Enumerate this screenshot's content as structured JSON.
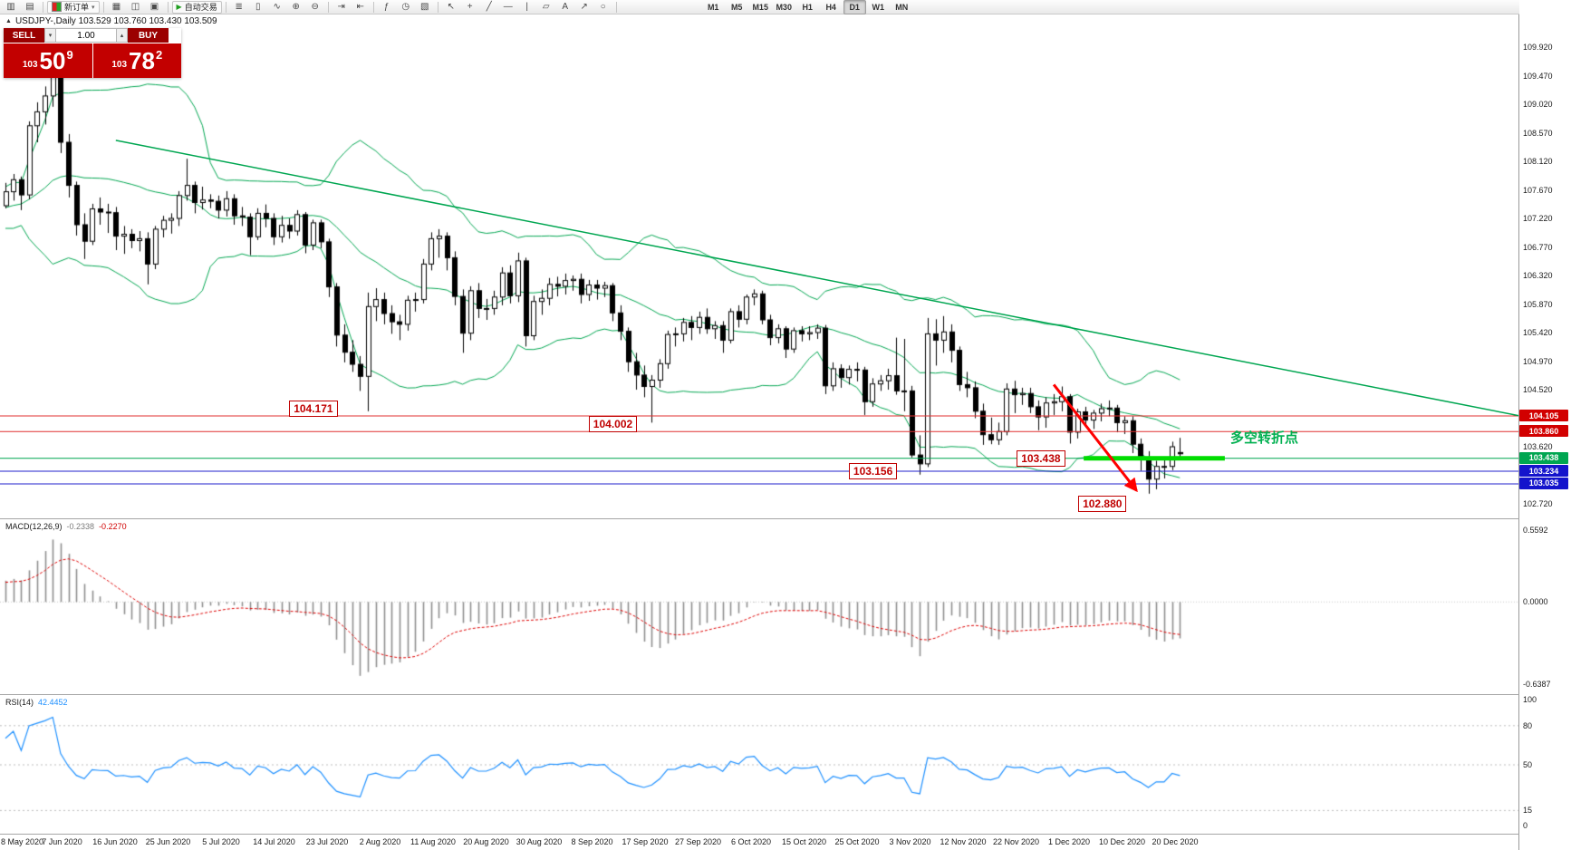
{
  "toolbar": {
    "new_order_label": "新订单",
    "autotrade_label": "自动交易",
    "timeframes": [
      "M1",
      "M5",
      "M15",
      "M30",
      "H1",
      "H4",
      "D1",
      "W1",
      "MN"
    ],
    "active_timeframe": "D1"
  },
  "icons": {
    "caret_down": "▾",
    "caret_up": "▴",
    "collapse": "▲",
    "chart_window": "▥",
    "profiles": "▤",
    "market_watch": "▦",
    "navigator": "◫",
    "terminal": "▣",
    "autoplay": "▶",
    "bars": "≣",
    "candles": "▯",
    "linechart": "∿",
    "zoom_in": "⊕",
    "zoom_out": "⊖",
    "autoscroll": "⇥",
    "shift": "⇤",
    "indicators": "ƒ",
    "periods": "◷",
    "templates": "▧",
    "cursor": "↖",
    "crosshair": "+",
    "trendline": "╱",
    "hline": "―",
    "vline": "|",
    "channel": "▱",
    "text": "A",
    "arrows": "↗",
    "shapes": "○",
    "overflow_left": "«",
    "overflow_right": "»"
  },
  "chart": {
    "title": "USDJPY-,Daily 103.529 103.760 103.430 103.509",
    "symbol": "USDJPY-",
    "period": "Daily",
    "quote": {
      "open": "103.529",
      "high": "103.760",
      "low": "103.430",
      "close": "103.509"
    }
  },
  "one_click": {
    "sell_label": "SELL",
    "buy_label": "BUY",
    "volume": "1.00",
    "sell_price": {
      "small": "103",
      "big": "50",
      "sup": "9"
    },
    "buy_price": {
      "small": "103",
      "big": "78",
      "sup": "2"
    }
  },
  "indicators": {
    "macd_label": "MACD(12,26,9)",
    "macd_main": "-0.2338",
    "macd_signal": "-0.2270",
    "rsi_label": "RSI(14)",
    "rsi_value": "42.4452"
  },
  "axis": {
    "price_ticks": [
      "109.920",
      "109.470",
      "109.020",
      "108.570",
      "108.120",
      "107.670",
      "107.220",
      "106.770",
      "106.320",
      "105.870",
      "105.420",
      "104.970",
      "104.520",
      "103.620",
      "102.720"
    ],
    "macd_ticks": [
      "0.5592",
      "0.0000",
      "-0.6387"
    ],
    "rsi_ticks": [
      "100",
      "80",
      "50",
      "15",
      "0"
    ],
    "dates": [
      "8 May 2020",
      "7 Jun 2020",
      "16 Jun 2020",
      "25 Jun 2020",
      "5 Jul 2020",
      "14 Jul 2020",
      "23 Jul 2020",
      "2 Aug 2020",
      "11 Aug 2020",
      "20 Aug 2020",
      "30 Aug 2020",
      "8 Sep 2020",
      "17 Sep 2020",
      "27 Sep 2020",
      "6 Oct 2020",
      "15 Oct 2020",
      "25 Oct 2020",
      "3 Nov 2020",
      "12 Nov 2020",
      "22 Nov 2020",
      "1 Dec 2020",
      "10 Dec 2020",
      "20 Dec 2020"
    ]
  },
  "chart_data": {
    "type": "candlestick",
    "symbol": "USDJPY",
    "timeframe": "Daily",
    "ylim": [
      102.72,
      109.92
    ],
    "grid": false,
    "candles": [
      [
        107.42,
        107.78,
        107.38,
        107.64
      ],
      [
        107.64,
        107.92,
        107.5,
        107.83
      ],
      [
        107.83,
        107.88,
        107.35,
        107.59
      ],
      [
        107.59,
        108.75,
        107.52,
        108.68
      ],
      [
        108.68,
        109.05,
        108.42,
        108.9
      ],
      [
        108.9,
        109.3,
        108.7,
        109.15
      ],
      [
        109.15,
        109.85,
        108.98,
        109.59
      ],
      [
        109.59,
        109.7,
        108.25,
        108.42
      ],
      [
        108.42,
        108.55,
        107.55,
        107.74
      ],
      [
        107.74,
        107.8,
        106.95,
        107.12
      ],
      [
        107.12,
        107.3,
        106.58,
        106.86
      ],
      [
        106.86,
        107.45,
        106.8,
        107.37
      ],
      [
        107.37,
        107.55,
        107.12,
        107.32
      ],
      [
        107.32,
        107.45,
        106.99,
        107.31
      ],
      [
        107.31,
        107.4,
        106.72,
        106.94
      ],
      [
        106.94,
        107.1,
        106.66,
        106.97
      ],
      [
        106.97,
        107.05,
        106.75,
        106.87
      ],
      [
        106.87,
        107.02,
        106.7,
        106.9
      ],
      [
        106.9,
        107.0,
        106.18,
        106.5
      ],
      [
        106.5,
        107.1,
        106.42,
        107.05
      ],
      [
        107.05,
        107.26,
        106.92,
        107.19
      ],
      [
        107.19,
        107.3,
        106.98,
        107.22
      ],
      [
        107.22,
        107.65,
        107.1,
        107.58
      ],
      [
        107.58,
        108.16,
        107.5,
        107.74
      ],
      [
        107.74,
        107.8,
        107.3,
        107.47
      ],
      [
        107.47,
        107.72,
        107.36,
        107.51
      ],
      [
        107.51,
        107.6,
        107.38,
        107.49
      ],
      [
        107.49,
        107.58,
        107.22,
        107.35
      ],
      [
        107.35,
        107.65,
        107.25,
        107.53
      ],
      [
        107.53,
        107.6,
        107.12,
        107.26
      ],
      [
        107.26,
        107.4,
        107.1,
        107.24
      ],
      [
        107.24,
        107.3,
        106.64,
        106.93
      ],
      [
        106.93,
        107.38,
        106.88,
        107.3
      ],
      [
        107.3,
        107.44,
        107.08,
        107.22
      ],
      [
        107.22,
        107.3,
        106.8,
        106.93
      ],
      [
        106.93,
        107.26,
        106.84,
        107.11
      ],
      [
        107.11,
        107.22,
        106.9,
        107.02
      ],
      [
        107.02,
        107.35,
        106.95,
        107.28
      ],
      [
        107.28,
        107.32,
        106.67,
        106.8
      ],
      [
        106.8,
        107.2,
        106.72,
        107.15
      ],
      [
        107.15,
        107.2,
        106.75,
        106.85
      ],
      [
        106.85,
        106.9,
        105.98,
        106.14
      ],
      [
        106.14,
        106.2,
        105.2,
        105.38
      ],
      [
        105.38,
        105.55,
        104.95,
        105.11
      ],
      [
        105.11,
        105.3,
        104.8,
        104.92
      ],
      [
        104.92,
        105.05,
        104.5,
        104.73
      ],
      [
        104.73,
        106.05,
        104.18,
        105.83
      ],
      [
        105.83,
        106.12,
        105.6,
        105.94
      ],
      [
        105.94,
        106.05,
        105.55,
        105.72
      ],
      [
        105.72,
        105.85,
        105.4,
        105.59
      ],
      [
        105.59,
        105.7,
        105.3,
        105.55
      ],
      [
        105.55,
        106.0,
        105.45,
        105.93
      ],
      [
        105.93,
        106.05,
        105.75,
        105.94
      ],
      [
        105.94,
        106.58,
        105.88,
        106.5
      ],
      [
        106.5,
        107.0,
        106.4,
        106.9
      ],
      [
        106.9,
        107.05,
        106.6,
        106.94
      ],
      [
        106.94,
        107.0,
        106.4,
        106.6
      ],
      [
        106.6,
        106.7,
        105.85,
        105.99
      ],
      [
        105.99,
        106.1,
        105.1,
        105.41
      ],
      [
        105.41,
        106.15,
        105.3,
        106.08
      ],
      [
        106.08,
        106.2,
        105.65,
        105.8
      ],
      [
        105.8,
        105.95,
        105.62,
        105.8
      ],
      [
        105.8,
        106.08,
        105.7,
        105.98
      ],
      [
        105.98,
        106.45,
        105.85,
        106.36
      ],
      [
        106.36,
        106.48,
        105.88,
        106.0
      ],
      [
        106.0,
        106.68,
        105.9,
        106.55
      ],
      [
        106.55,
        106.6,
        105.2,
        105.37
      ],
      [
        105.37,
        106.0,
        105.3,
        105.91
      ],
      [
        105.91,
        106.1,
        105.7,
        105.96
      ],
      [
        105.96,
        106.28,
        105.85,
        106.18
      ],
      [
        106.18,
        106.3,
        105.99,
        106.15
      ],
      [
        106.15,
        106.35,
        106.02,
        106.24
      ],
      [
        106.24,
        106.32,
        106.08,
        106.26
      ],
      [
        106.26,
        106.35,
        105.88,
        106.02
      ],
      [
        106.02,
        106.25,
        105.92,
        106.17
      ],
      [
        106.17,
        106.25,
        105.94,
        106.12
      ],
      [
        106.12,
        106.22,
        105.98,
        106.16
      ],
      [
        106.16,
        106.2,
        105.6,
        105.73
      ],
      [
        105.73,
        105.85,
        105.3,
        105.44
      ],
      [
        105.44,
        105.5,
        104.8,
        104.96
      ],
      [
        104.96,
        105.1,
        104.52,
        104.75
      ],
      [
        104.75,
        104.9,
        104.4,
        104.57
      ],
      [
        104.57,
        104.75,
        104.0,
        104.67
      ],
      [
        104.67,
        105.0,
        104.55,
        104.93
      ],
      [
        104.93,
        105.45,
        104.85,
        105.39
      ],
      [
        105.39,
        105.5,
        105.2,
        105.4
      ],
      [
        105.4,
        105.65,
        105.28,
        105.58
      ],
      [
        105.58,
        105.68,
        105.3,
        105.5
      ],
      [
        105.5,
        105.75,
        105.4,
        105.66
      ],
      [
        105.66,
        105.8,
        105.4,
        105.48
      ],
      [
        105.48,
        105.6,
        105.32,
        105.53
      ],
      [
        105.53,
        105.6,
        105.1,
        105.3
      ],
      [
        105.3,
        105.8,
        105.25,
        105.75
      ],
      [
        105.75,
        105.85,
        105.5,
        105.63
      ],
      [
        105.63,
        106.02,
        105.55,
        105.98
      ],
      [
        105.98,
        106.1,
        105.85,
        106.03
      ],
      [
        106.03,
        106.08,
        105.55,
        105.62
      ],
      [
        105.62,
        105.7,
        105.22,
        105.34
      ],
      [
        105.34,
        105.55,
        105.25,
        105.48
      ],
      [
        105.48,
        105.52,
        105.02,
        105.16
      ],
      [
        105.16,
        105.5,
        105.1,
        105.45
      ],
      [
        105.45,
        105.52,
        105.28,
        105.4
      ],
      [
        105.4,
        105.52,
        105.3,
        105.42
      ],
      [
        105.42,
        105.55,
        105.32,
        105.49
      ],
      [
        105.49,
        105.54,
        104.45,
        104.58
      ],
      [
        104.58,
        104.95,
        104.5,
        104.85
      ],
      [
        104.85,
        104.92,
        104.55,
        104.71
      ],
      [
        104.71,
        104.9,
        104.6,
        104.84
      ],
      [
        104.84,
        104.95,
        104.65,
        104.83
      ],
      [
        104.83,
        104.88,
        104.12,
        104.33
      ],
      [
        104.33,
        104.7,
        104.25,
        104.61
      ],
      [
        104.61,
        104.75,
        104.5,
        104.66
      ],
      [
        104.66,
        104.85,
        104.52,
        104.74
      ],
      [
        104.74,
        105.34,
        104.44,
        104.5
      ],
      [
        104.5,
        105.32,
        104.18,
        104.5
      ],
      [
        104.5,
        104.58,
        103.45,
        103.49
      ],
      [
        103.49,
        103.8,
        103.18,
        103.35
      ],
      [
        103.35,
        105.65,
        103.3,
        105.4
      ],
      [
        105.4,
        105.63,
        104.9,
        105.3
      ],
      [
        105.3,
        105.68,
        105.1,
        105.43
      ],
      [
        105.43,
        105.55,
        104.95,
        105.14
      ],
      [
        105.14,
        105.2,
        104.5,
        104.6
      ],
      [
        104.6,
        104.8,
        104.4,
        104.55
      ],
      [
        104.55,
        104.65,
        104.07,
        104.18
      ],
      [
        104.18,
        104.3,
        103.65,
        103.81
      ],
      [
        103.81,
        104.08,
        103.66,
        103.73
      ],
      [
        103.73,
        104.0,
        103.65,
        103.86
      ],
      [
        103.86,
        104.62,
        103.8,
        104.53
      ],
      [
        104.53,
        104.66,
        104.15,
        104.44
      ],
      [
        104.44,
        104.55,
        104.28,
        104.46
      ],
      [
        104.46,
        104.55,
        104.15,
        104.25
      ],
      [
        104.25,
        104.35,
        103.88,
        104.09
      ],
      [
        104.09,
        104.4,
        103.92,
        104.31
      ],
      [
        104.31,
        104.45,
        104.12,
        104.33
      ],
      [
        104.33,
        104.57,
        104.18,
        104.41
      ],
      [
        104.41,
        104.45,
        103.67,
        103.85
      ],
      [
        103.85,
        104.22,
        103.75,
        104.17
      ],
      [
        104.17,
        104.25,
        103.94,
        104.04
      ],
      [
        104.04,
        104.2,
        103.9,
        104.15
      ],
      [
        104.15,
        104.3,
        104.02,
        104.22
      ],
      [
        104.22,
        104.35,
        104.1,
        104.23
      ],
      [
        104.23,
        104.28,
        103.85,
        104.0
      ],
      [
        104.0,
        104.1,
        103.82,
        104.03
      ],
      [
        104.03,
        104.1,
        103.52,
        103.66
      ],
      [
        103.66,
        103.75,
        103.24,
        103.45
      ],
      [
        103.45,
        103.55,
        102.88,
        103.11
      ],
      [
        103.11,
        103.4,
        102.95,
        103.31
      ],
      [
        103.31,
        103.45,
        103.12,
        103.31
      ],
      [
        103.31,
        103.7,
        103.25,
        103.62
      ],
      [
        103.529,
        103.76,
        103.43,
        103.509
      ]
    ],
    "overlays": {
      "bollinger": {
        "period": 20,
        "deviation": 2,
        "color": "#00a651"
      },
      "trendline": {
        "from": {
          "index": 14,
          "price": 108.45
        },
        "to": {
          "index": 192,
          "price": 104.11
        },
        "color": "#00a651"
      }
    },
    "hlines": [
      {
        "price": 104.105,
        "label": "104.105",
        "color": "#e03131",
        "tag_bg": "#d20000"
      },
      {
        "price": 103.86,
        "label": "103.860",
        "color": "#e03131",
        "tag_bg": "#d20000"
      },
      {
        "price": 103.438,
        "label": "103.438",
        "color": "#00a651",
        "tag_bg": "#00a651"
      },
      {
        "price": 103.234,
        "label": "103.234",
        "color": "#2222cc",
        "tag_bg": "#1414cc"
      },
      {
        "price": 103.035,
        "label": "103.035",
        "color": "#2222cc",
        "tag_bg": "#1414cc"
      }
    ],
    "annotations": {
      "text_boxes": [
        {
          "text": "104.171",
          "index": 36,
          "price": 104.22
        },
        {
          "text": "104.002",
          "index": 74,
          "price": 103.98
        },
        {
          "text": "103.438",
          "index": 128.3,
          "price": 103.438
        },
        {
          "text": "103.156",
          "index": 107,
          "price": 103.234
        },
        {
          "text": "102.880",
          "index": 136.1,
          "price": 102.72
        }
      ],
      "note": {
        "text": "多空转折点",
        "index": 155.4,
        "price": 103.79,
        "color": "#00b050"
      },
      "arrow": {
        "from": {
          "index": 133,
          "price": 104.6
        },
        "to": {
          "index": 143.5,
          "price": 102.93
        },
        "color": "#ff0000"
      },
      "highlight_segment": {
        "price": 103.438,
        "from_index": 136.8,
        "to_index": 154.7,
        "color": "#00dd00"
      }
    },
    "sub_indicators": [
      {
        "name": "MACD",
        "params": "12,26,9",
        "main": -0.2338,
        "signal": -0.227,
        "scale_max": 0.5592,
        "scale_min": -0.6387,
        "hist_color": "#909090",
        "signal_color": "#dd0000"
      },
      {
        "name": "RSI",
        "params": "14",
        "value": 42.4452,
        "levels": [
          80,
          50,
          15
        ],
        "scale": [
          0,
          100
        ],
        "color": "#1e90ff"
      }
    ]
  }
}
